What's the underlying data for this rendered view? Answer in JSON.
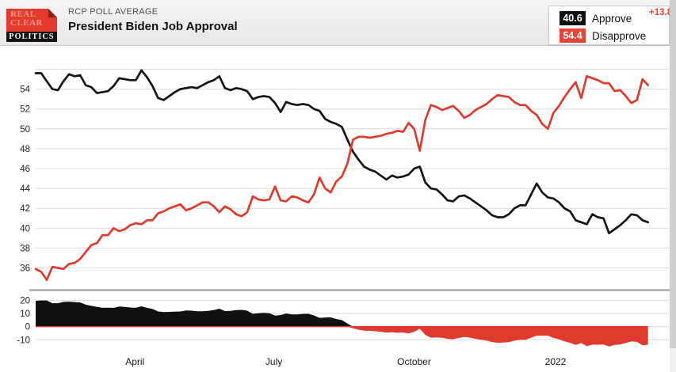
{
  "header": {
    "kicker": "RCP POLL AVERAGE",
    "title": "President Biden Job Approval",
    "logo": {
      "line1": "REAL",
      "line2": "CLEAR",
      "line3": "POLITICS"
    }
  },
  "legend": {
    "approve": {
      "value": "40.6",
      "label": "Approve"
    },
    "disapprove": {
      "value": "54.4",
      "label": "Disapprove",
      "spread": "+13.8"
    }
  },
  "colors": {
    "approve": "#151515",
    "disapprove": "#df3a2e",
    "badge_black": "#111111",
    "badge_red": "#e74337",
    "spread_text": "#e74337",
    "grid": "#dcdcdc",
    "divider": "#ababab",
    "zero_line": "#df3a2e"
  },
  "chart_data": [
    {
      "type": "line",
      "title": "President Biden Job Approval",
      "ylim": [
        35,
        56.5
      ],
      "y_ticks": [
        54,
        52,
        50,
        48,
        46,
        44,
        42,
        40,
        38,
        36
      ],
      "y_ticks_unlabeled": [
        56
      ],
      "grid": "horizontal",
      "legend_position": "top-right",
      "x_ticks": [
        {
          "label": "April",
          "f": 0.162
        },
        {
          "label": "July",
          "f": 0.389
        },
        {
          "label": "October",
          "f": 0.618
        },
        {
          "label": "2022",
          "f": 0.849
        }
      ],
      "series": [
        {
          "name": "Approve",
          "color": "#151515",
          "values": [
            55.6,
            55.6,
            54.8,
            54.0,
            53.9,
            54.8,
            55.5,
            55.3,
            55.4,
            54.4,
            54.2,
            53.6,
            53.7,
            53.8,
            54.3,
            55.1,
            55.0,
            54.9,
            54.9,
            55.9,
            55.2,
            54.3,
            53.1,
            52.9,
            53.3,
            53.7,
            54.0,
            54.1,
            54.2,
            54.1,
            54.4,
            54.7,
            54.9,
            55.3,
            54.1,
            53.9,
            54.1,
            54.0,
            53.8,
            53.0,
            53.2,
            53.3,
            53.2,
            52.6,
            51.7,
            52.7,
            52.5,
            52.4,
            52.5,
            52.4,
            52.0,
            51.8,
            51.0,
            50.7,
            50.5,
            50.2,
            48.9,
            47.7,
            46.9,
            46.2,
            45.9,
            45.7,
            45.3,
            44.9,
            45.3,
            45.1,
            45.2,
            45.4,
            46.0,
            46.2,
            44.6,
            44.0,
            43.9,
            43.4,
            42.8,
            42.7,
            43.2,
            43.3,
            43.0,
            42.6,
            42.2,
            41.8,
            41.3,
            41.1,
            41.1,
            41.4,
            42.0,
            42.3,
            42.3,
            43.4,
            44.5,
            43.6,
            43.1,
            43.0,
            42.6,
            42.0,
            41.7,
            40.8,
            40.6,
            40.4,
            41.4,
            41.1,
            41.0,
            39.5,
            39.9,
            40.3,
            40.8,
            41.4,
            41.3,
            40.8,
            40.6
          ]
        },
        {
          "name": "Disapprove",
          "color": "#df3a2e",
          "values": [
            35.9,
            35.6,
            34.8,
            36.1,
            36.0,
            35.9,
            36.4,
            36.5,
            36.9,
            37.6,
            38.3,
            38.5,
            39.3,
            39.3,
            40.0,
            39.7,
            39.9,
            40.3,
            40.5,
            40.4,
            40.8,
            40.8,
            41.5,
            41.7,
            42.0,
            42.2,
            42.4,
            41.8,
            42.0,
            42.3,
            42.6,
            42.6,
            42.2,
            41.6,
            42.2,
            41.9,
            41.4,
            41.2,
            41.6,
            43.2,
            42.9,
            42.8,
            42.9,
            44.2,
            42.8,
            42.7,
            43.2,
            43.1,
            42.8,
            42.6,
            43.4,
            45.1,
            44.0,
            43.6,
            44.7,
            45.2,
            46.5,
            48.9,
            49.2,
            49.2,
            49.1,
            49.2,
            49.3,
            49.5,
            49.6,
            49.8,
            49.7,
            50.6,
            50.0,
            47.8,
            50.9,
            52.4,
            52.2,
            51.9,
            52.1,
            52.3,
            51.8,
            51.1,
            51.4,
            51.9,
            52.2,
            52.5,
            53.0,
            53.4,
            53.3,
            53.2,
            52.7,
            52.4,
            52.4,
            51.8,
            51.4,
            50.5,
            50.0,
            51.6,
            52.3,
            53.2,
            54.0,
            54.7,
            53.1,
            55.3,
            55.1,
            54.9,
            54.6,
            54.6,
            53.8,
            53.9,
            53.3,
            52.6,
            52.9,
            55.0,
            54.4
          ]
        }
      ]
    },
    {
      "type": "area",
      "name": "Spread (Approve minus Disapprove)",
      "ylim": [
        -16,
        22
      ],
      "y_ticks": [
        20,
        10,
        0,
        -10
      ],
      "zero_line_color": "#df3a2e",
      "positive_color": "#111111",
      "negative_color": "#df3a2e",
      "values": [
        19.7,
        20.0,
        20.0,
        17.9,
        17.9,
        18.9,
        19.1,
        18.8,
        18.5,
        16.8,
        15.9,
        15.1,
        14.4,
        14.5,
        14.3,
        15.4,
        15.1,
        14.6,
        14.4,
        15.5,
        14.4,
        13.5,
        11.6,
        11.2,
        11.3,
        11.5,
        11.6,
        12.3,
        12.2,
        11.8,
        11.8,
        12.1,
        12.7,
        13.7,
        11.9,
        12.0,
        12.7,
        12.8,
        12.2,
        9.8,
        10.3,
        10.5,
        10.3,
        8.4,
        8.9,
        10.0,
        9.3,
        9.3,
        9.7,
        9.8,
        8.6,
        6.7,
        7.0,
        7.1,
        5.8,
        5.0,
        2.4,
        -1.2,
        -2.3,
        -3.0,
        -3.2,
        -3.5,
        -4.0,
        -4.6,
        -4.3,
        -4.7,
        -4.5,
        -5.2,
        -4.0,
        -1.6,
        -6.3,
        -8.4,
        -8.3,
        -8.5,
        -9.3,
        -9.6,
        -8.6,
        -7.8,
        -8.4,
        -9.3,
        -10.0,
        -10.7,
        -11.7,
        -12.3,
        -12.2,
        -11.8,
        -10.7,
        -10.1,
        -10.1,
        -8.4,
        -6.9,
        -6.9,
        -6.9,
        -8.6,
        -9.7,
        -11.2,
        -12.3,
        -13.9,
        -12.5,
        -14.9,
        -13.7,
        -13.8,
        -13.6,
        -15.1,
        -13.9,
        -13.6,
        -12.5,
        -11.2,
        -11.6,
        -14.2,
        -13.8
      ]
    }
  ]
}
